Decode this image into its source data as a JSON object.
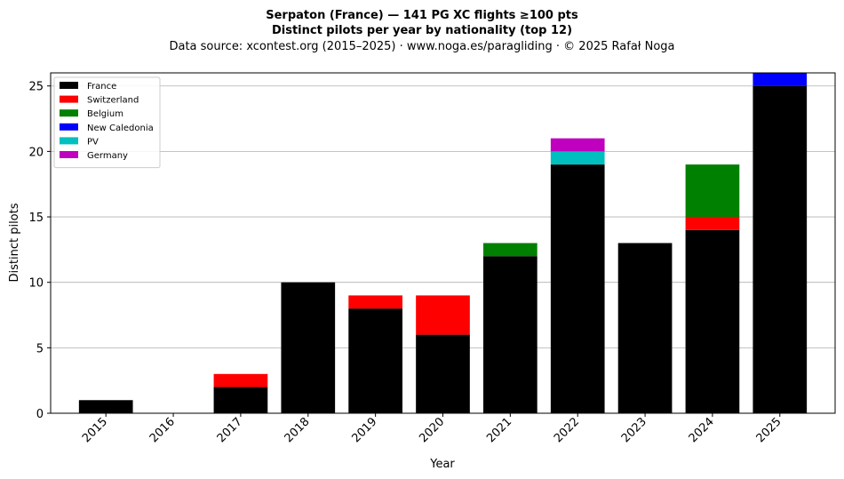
{
  "chart_data": {
    "type": "bar",
    "stacked": true,
    "title_line1": "Serpaton (France)  —  141 PG XC flights ≥100 pts",
    "title_line2": "Distinct pilots per year by nationality (top 12)",
    "subtitle": "Data source: xcontest.org (2015–2025)  ·  www.noga.es/paragliding  ·  © 2025 Rafał Noga",
    "xlabel": "Year",
    "ylabel": "Distinct pilots",
    "categories": [
      "2015",
      "2016",
      "2017",
      "2018",
      "2019",
      "2020",
      "2021",
      "2022",
      "2023",
      "2024",
      "2025"
    ],
    "ylim": [
      0,
      26
    ],
    "yticks": [
      0,
      5,
      10,
      15,
      20,
      25
    ],
    "grid": "horizontal",
    "legend_position": "top-left",
    "series": [
      {
        "name": "France",
        "color": "#000000",
        "values": [
          1,
          0,
          2,
          10,
          8,
          6,
          12,
          19,
          13,
          14,
          25
        ]
      },
      {
        "name": "Switzerland",
        "color": "#ff0000",
        "values": [
          0,
          0,
          1,
          0,
          1,
          3,
          0,
          0,
          0,
          1,
          0
        ]
      },
      {
        "name": "Belgium",
        "color": "#008000",
        "values": [
          0,
          0,
          0,
          0,
          0,
          0,
          1,
          0,
          0,
          4,
          0
        ]
      },
      {
        "name": "New Caledonia",
        "color": "#0000ff",
        "values": [
          0,
          0,
          0,
          0,
          0,
          0,
          0,
          0,
          0,
          0,
          1
        ]
      },
      {
        "name": "PV",
        "color": "#00bfbf",
        "values": [
          0,
          0,
          0,
          0,
          0,
          0,
          0,
          1,
          0,
          0,
          0
        ]
      },
      {
        "name": "Germany",
        "color": "#bf00bf",
        "values": [
          0,
          0,
          0,
          0,
          0,
          0,
          0,
          1,
          0,
          0,
          0
        ]
      }
    ]
  }
}
